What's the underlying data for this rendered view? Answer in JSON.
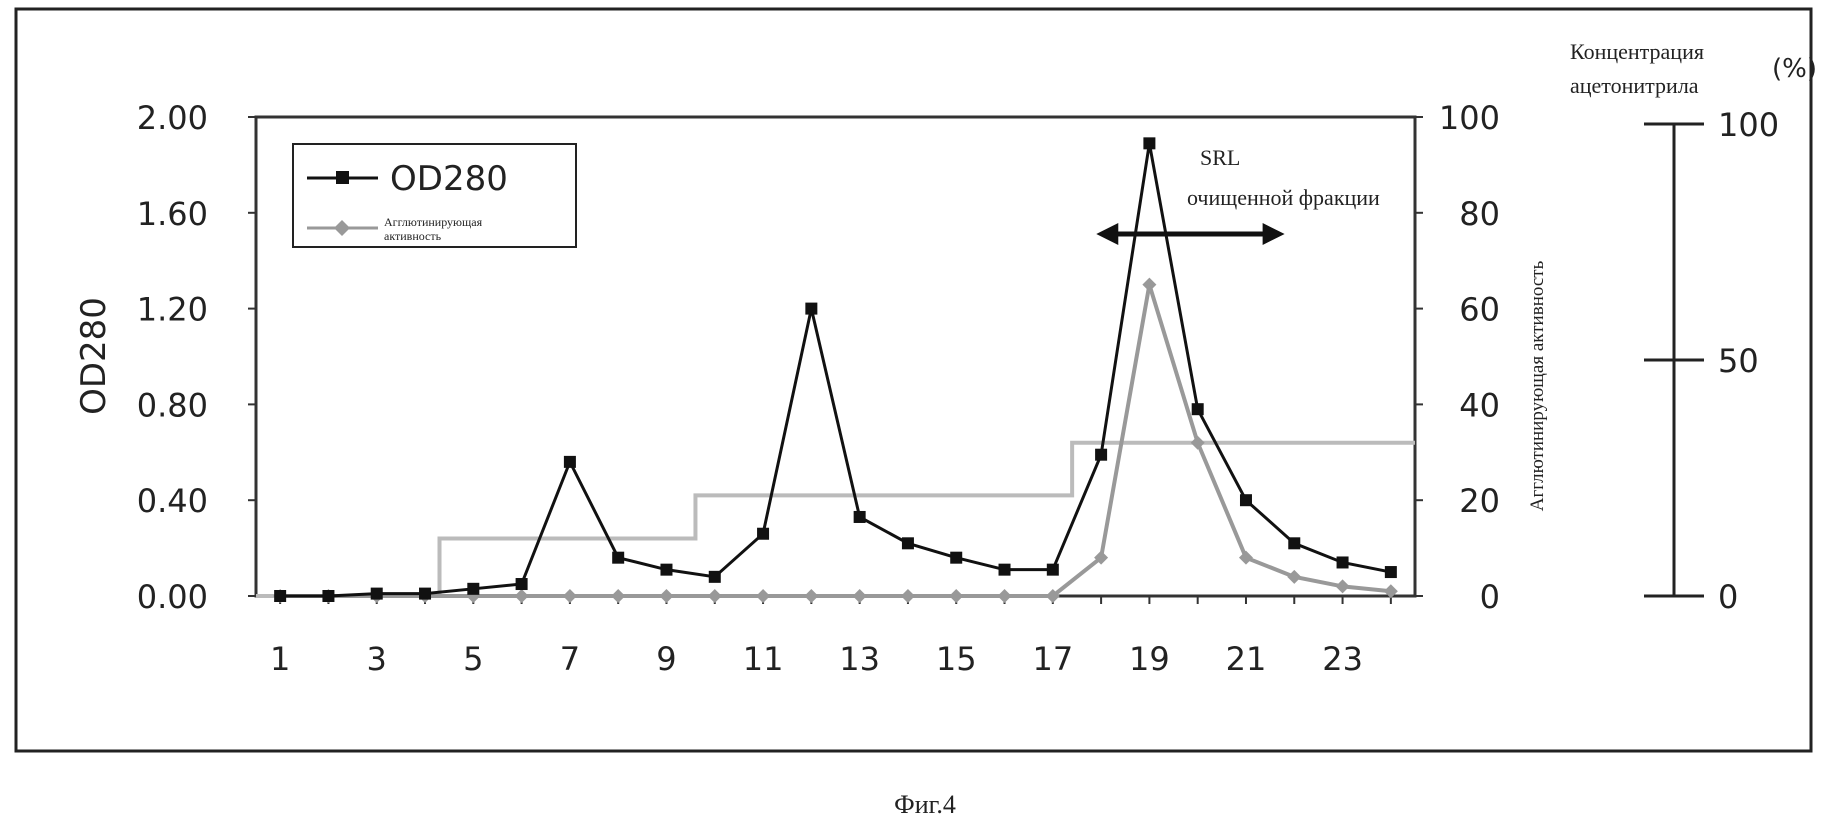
{
  "chart_data": {
    "type": "line",
    "x": [
      1,
      2,
      3,
      4,
      5,
      6,
      7,
      8,
      9,
      10,
      11,
      12,
      13,
      14,
      15,
      16,
      17,
      18,
      19,
      20,
      21,
      22,
      23,
      24
    ],
    "x_tick_labels": [
      "1",
      "3",
      "5",
      "7",
      "9",
      "11",
      "13",
      "15",
      "17",
      "19",
      "21",
      "23"
    ],
    "ylabel": "OD280",
    "ylim": [
      0,
      2.0
    ],
    "y_tick_labels": [
      "0.00",
      "0.40",
      "0.80",
      "1.20",
      "1.60",
      "2.00"
    ],
    "y2label": "Агглютинирующая активность",
    "y2lim": [
      0,
      100
    ],
    "y2_tick_labels": [
      "0",
      "20",
      "40",
      "60",
      "80",
      "100"
    ],
    "y3label_line1": "Концентрация",
    "y3label_line2": "ацетонитрила",
    "y3unit": "(%)",
    "y3lim": [
      0,
      100
    ],
    "y3_tick_labels": [
      "0",
      "50",
      "100"
    ],
    "series": [
      {
        "name": "OD280",
        "axis": "left",
        "color": "#111111",
        "marker": "square",
        "values": [
          0.0,
          0.0,
          0.01,
          0.01,
          0.03,
          0.05,
          0.56,
          0.16,
          0.11,
          0.08,
          0.26,
          1.2,
          0.33,
          0.22,
          0.16,
          0.11,
          0.11,
          0.59,
          1.89,
          0.78,
          0.4,
          0.22,
          0.14,
          0.1
        ]
      },
      {
        "name": "Агглютинирующая активность",
        "name_line1": "Агглютинирующая",
        "name_line2": "активность",
        "axis": "right",
        "color": "#999999",
        "marker": "diamond",
        "values": [
          0,
          0,
          0,
          0,
          0,
          0,
          0,
          0,
          0,
          0,
          0,
          0,
          0,
          0,
          0,
          0,
          0,
          8,
          65,
          32,
          8,
          4,
          2,
          1
        ]
      }
    ],
    "gradient": {
      "axis": "right",
      "color": "#bbbbbb",
      "steps": [
        {
          "from": 0.5,
          "to": 4.3,
          "value": 0
        },
        {
          "from": 4.3,
          "to": 9.6,
          "value": 12
        },
        {
          "from": 9.6,
          "to": 17.4,
          "value": 21
        },
        {
          "from": 17.4,
          "to": 24.5,
          "value": 32
        }
      ]
    },
    "legend_position": "top-left",
    "annotation": {
      "line1": "SRL",
      "line2": "очищенной фракции",
      "arrow_from": 17.9,
      "arrow_to": 21.8
    },
    "grid": false
  },
  "caption": "Фиг.4"
}
